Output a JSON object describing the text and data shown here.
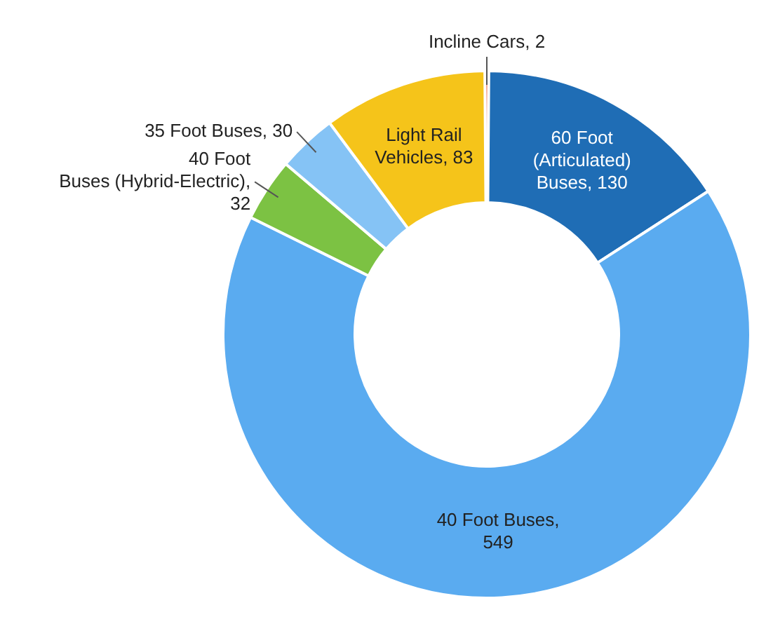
{
  "chart_data": {
    "type": "donut",
    "categories": [
      "Incline Cars",
      "60 Foot (Articulated) Buses",
      "40 Foot Buses",
      "40 Foot Buses (Hybrid-Electric)",
      "35 Foot Buses",
      "Light Rail Vehicles"
    ],
    "values": [
      2,
      130,
      549,
      32,
      30,
      83
    ],
    "value_labels": [
      ", 2",
      ", 130",
      ", 549",
      ", 32",
      ", 30",
      ", 83"
    ],
    "colors": [
      "#e8552a",
      "#1f6db5",
      "#5aabf0",
      "#7cc243",
      "#85c3f5",
      "#f5c41a"
    ],
    "legend": false
  }
}
